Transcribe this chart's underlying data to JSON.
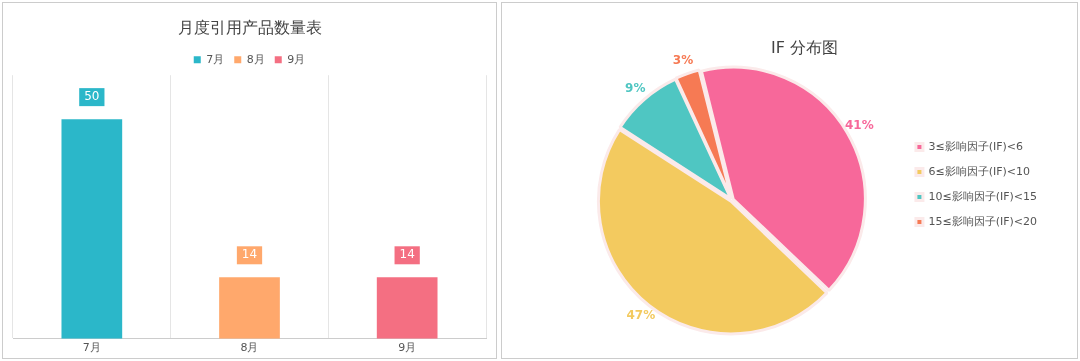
{
  "chart_data": [
    {
      "type": "bar",
      "title": "月度引用产品数量表",
      "categories": [
        "7月",
        "8月",
        "9月"
      ],
      "series": [
        {
          "name": "7月",
          "color": "#2bb7c9",
          "values": [
            50,
            null,
            null
          ]
        },
        {
          "name": "8月",
          "color": "#ffa86c",
          "values": [
            null,
            14,
            null
          ]
        },
        {
          "name": "9月",
          "color": "#f46f82",
          "values": [
            null,
            null,
            14
          ]
        }
      ],
      "data_labels": true,
      "legend": "top",
      "grid": "x"
    },
    {
      "type": "pie",
      "title": "IF 分布图",
      "categories": [
        "3≤影响因子(IF)<6",
        "6≤影响因子(IF)<10",
        "10≤影响因子(IF)<15",
        "15≤影响因子(IF)<20"
      ],
      "values": [
        41,
        47,
        9,
        3
      ],
      "value_labels": [
        "41%",
        "47%",
        "9%",
        "3%"
      ],
      "colors": [
        "#f7689a",
        "#f3ca5f",
        "#4fc6c2",
        "#f67a54"
      ],
      "legend": "right"
    }
  ]
}
